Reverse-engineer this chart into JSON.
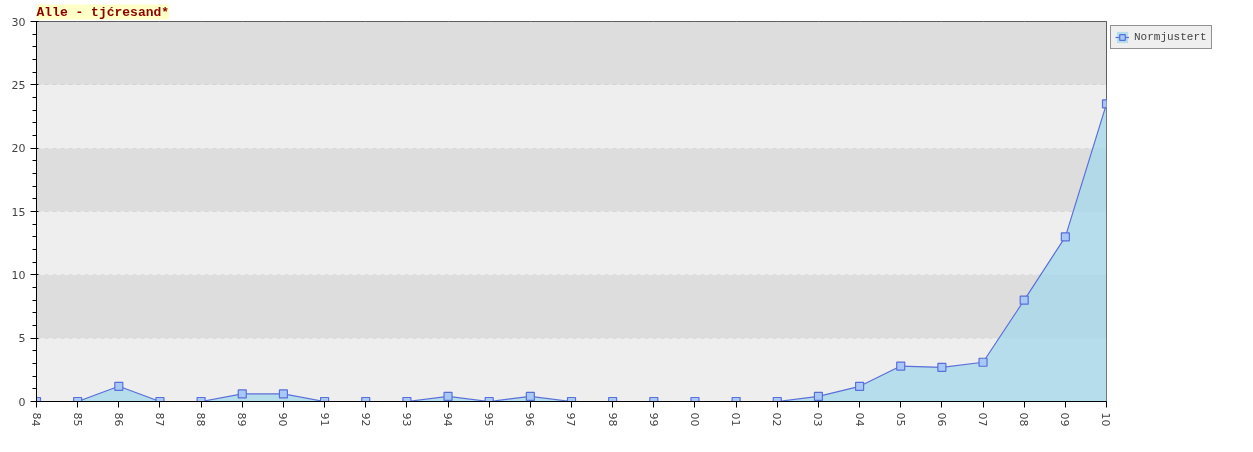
{
  "chart_data": {
    "type": "area",
    "title": "Alle - tjćresand*",
    "categories": [
      "84",
      "85",
      "86",
      "87",
      "88",
      "89",
      "90",
      "91",
      "92",
      "93",
      "94",
      "95",
      "96",
      "97",
      "98",
      "99",
      "00",
      "01",
      "02",
      "03",
      "04",
      "05",
      "06",
      "07",
      "08",
      "09",
      "10"
    ],
    "series": [
      {
        "name": "Normjustert",
        "color": "#5a6fd8",
        "values": [
          0,
          0,
          1.2,
          0,
          0,
          0.6,
          0.6,
          0,
          0,
          0,
          0.4,
          0,
          0.4,
          0,
          0,
          0,
          0,
          0,
          0,
          0.4,
          1.2,
          2.8,
          2.7,
          3.1,
          8.0,
          13.0,
          23.5
        ]
      }
    ],
    "ylim": [
      0,
      30
    ],
    "yticks": [
      0,
      5,
      10,
      15,
      20,
      25,
      30
    ],
    "bands": [
      {
        "axis": "y",
        "from": 0,
        "to": 5,
        "color": "#eeeeee"
      },
      {
        "axis": "y",
        "from": 5,
        "to": 10,
        "color": "#dddddd"
      },
      {
        "axis": "y",
        "from": 10,
        "to": 15,
        "color": "#eeeeee"
      },
      {
        "axis": "y",
        "from": 15,
        "to": 20,
        "color": "#dddddd"
      },
      {
        "axis": "y",
        "from": 20,
        "to": 25,
        "color": "#eeeeee"
      },
      {
        "axis": "y",
        "from": 25,
        "to": 30,
        "color": "#dddddd"
      }
    ],
    "grid": true,
    "legend": "top right",
    "marker": "square",
    "line_style": "solid"
  }
}
